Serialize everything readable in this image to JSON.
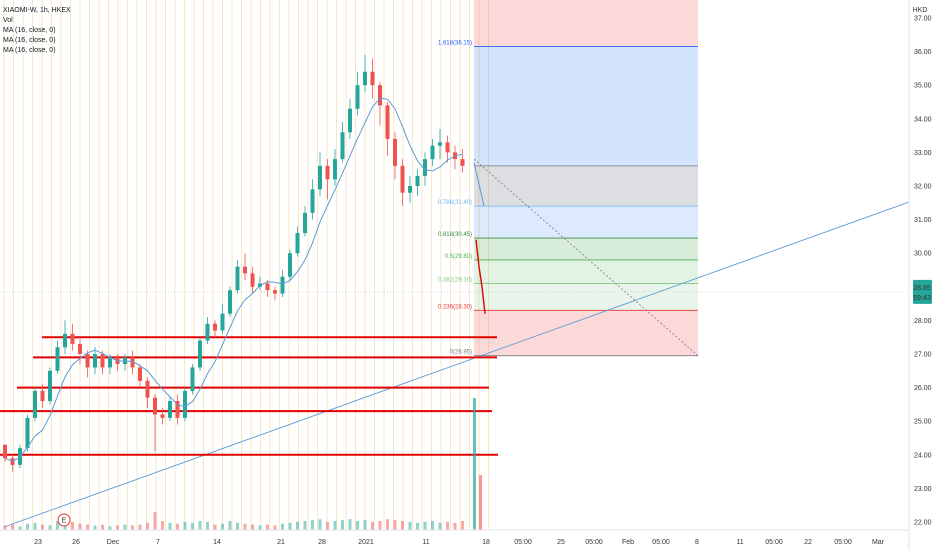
{
  "legend": {
    "symbol": "XIAOMI-W, 1h, HKEX",
    "vol": "Vol",
    "ma1": "MA (16, close, 0)",
    "ma2": "MA (16, close, 0)",
    "ma3": "MA (16, close, 0)"
  },
  "currency": "HKD",
  "price_badge": {
    "price": "28.85",
    "countdown": "59:43",
    "color": "#26a69a"
  },
  "event_badge": "E",
  "chart_data": {
    "type": "candlestick",
    "ylim": [
      22.0,
      37.0
    ],
    "y_ticks": [
      "22.00",
      "23.00",
      "24.00",
      "25.00",
      "26.00",
      "27.00",
      "28.00",
      "29.00",
      "30.00",
      "31.00",
      "32.00",
      "33.00",
      "34.00",
      "35.00",
      "36.00",
      "37.00"
    ],
    "x_ticks": [
      "23",
      "26",
      "Dec",
      "7",
      "14",
      "21",
      "28",
      "2021",
      "11",
      "18",
      "05:00",
      "25",
      "05:00",
      "Feb",
      "05:00",
      "8",
      "11",
      "05:00",
      "22",
      "05:00",
      "Mar"
    ],
    "candles": [
      [
        24.3,
        23.9,
        24.3,
        23.8
      ],
      [
        23.9,
        23.7,
        24.0,
        23.5
      ],
      [
        23.7,
        24.2,
        24.3,
        23.6
      ],
      [
        24.2,
        25.1,
        25.2,
        24.1
      ],
      [
        25.1,
        25.9,
        26.0,
        25.0
      ],
      [
        25.9,
        25.6,
        26.1,
        25.4
      ],
      [
        25.6,
        26.5,
        26.6,
        25.5
      ],
      [
        26.5,
        27.2,
        27.4,
        26.4
      ],
      [
        27.2,
        27.6,
        28.0,
        27.0
      ],
      [
        27.6,
        27.3,
        27.9,
        27.1
      ],
      [
        27.3,
        27.0,
        27.5,
        26.7
      ],
      [
        27.0,
        26.6,
        27.1,
        26.3
      ],
      [
        26.6,
        27.0,
        27.2,
        26.4
      ],
      [
        27.0,
        26.6,
        27.1,
        26.4
      ],
      [
        26.6,
        26.9,
        27.0,
        26.4
      ],
      [
        26.9,
        26.7,
        27.0,
        26.5
      ],
      [
        26.7,
        26.9,
        27.0,
        26.5
      ],
      [
        26.9,
        26.6,
        27.1,
        26.4
      ],
      [
        26.6,
        26.2,
        26.7,
        26.0
      ],
      [
        26.2,
        25.7,
        26.3,
        25.4
      ],
      [
        25.7,
        25.2,
        25.8,
        24.1
      ],
      [
        25.2,
        25.1,
        25.4,
        24.9
      ],
      [
        25.1,
        25.6,
        25.7,
        25.0
      ],
      [
        25.6,
        25.1,
        25.8,
        24.9
      ],
      [
        25.1,
        25.9,
        26.0,
        25.0
      ],
      [
        25.9,
        26.6,
        26.7,
        25.8
      ],
      [
        26.6,
        27.4,
        27.5,
        26.5
      ],
      [
        27.4,
        27.9,
        28.1,
        27.3
      ],
      [
        27.9,
        27.7,
        28.0,
        27.5
      ],
      [
        27.7,
        28.2,
        28.5,
        27.6
      ],
      [
        28.2,
        28.9,
        29.0,
        28.1
      ],
      [
        28.9,
        29.6,
        29.8,
        28.8
      ],
      [
        29.6,
        29.4,
        30.0,
        29.2
      ],
      [
        29.4,
        29.0,
        29.6,
        28.8
      ],
      [
        29.0,
        29.1,
        29.3,
        28.9
      ],
      [
        29.1,
        28.9,
        29.2,
        28.7
      ],
      [
        28.9,
        28.8,
        29.0,
        28.6
      ],
      [
        28.8,
        29.3,
        29.5,
        28.7
      ],
      [
        29.3,
        30.0,
        30.1,
        29.2
      ],
      [
        30.0,
        30.6,
        30.8,
        29.9
      ],
      [
        30.6,
        31.2,
        31.4,
        30.5
      ],
      [
        31.2,
        31.9,
        32.2,
        31.0
      ],
      [
        31.9,
        32.6,
        33.0,
        31.7
      ],
      [
        32.6,
        32.2,
        32.8,
        31.6
      ],
      [
        32.2,
        32.8,
        33.1,
        32.0
      ],
      [
        32.8,
        33.6,
        33.9,
        32.7
      ],
      [
        33.6,
        34.3,
        34.6,
        33.4
      ],
      [
        34.3,
        35.0,
        35.4,
        34.1
      ],
      [
        35.0,
        35.4,
        35.9,
        34.8
      ],
      [
        35.4,
        35.0,
        35.8,
        34.6
      ],
      [
        35.0,
        34.4,
        35.1,
        33.8
      ],
      [
        34.4,
        33.4,
        34.5,
        32.9
      ],
      [
        33.4,
        32.6,
        33.6,
        32.2
      ],
      [
        32.6,
        31.8,
        32.8,
        31.4
      ],
      [
        31.8,
        32.0,
        32.3,
        31.5
      ],
      [
        32.0,
        32.3,
        32.5,
        31.7
      ],
      [
        32.3,
        32.8,
        33.0,
        32.0
      ],
      [
        32.8,
        33.2,
        33.4,
        32.6
      ],
      [
        33.2,
        33.3,
        33.7,
        32.8
      ],
      [
        33.3,
        33.0,
        33.5,
        32.7
      ],
      [
        33.0,
        32.8,
        33.2,
        32.5
      ],
      [
        32.8,
        32.6,
        33.1,
        32.4
      ]
    ],
    "volumes": [
      0.25,
      0.3,
      0.2,
      0.35,
      0.4,
      0.3,
      0.25,
      0.5,
      0.7,
      0.45,
      0.35,
      0.3,
      0.25,
      0.3,
      0.2,
      0.25,
      0.3,
      0.25,
      0.3,
      0.4,
      1.0,
      0.5,
      0.4,
      0.35,
      0.45,
      0.4,
      0.5,
      0.45,
      0.3,
      0.35,
      0.5,
      0.4,
      0.35,
      0.3,
      0.25,
      0.3,
      0.25,
      0.35,
      0.4,
      0.45,
      0.5,
      0.55,
      0.6,
      0.45,
      0.5,
      0.55,
      0.6,
      0.5,
      0.55,
      0.45,
      0.5,
      0.6,
      0.55,
      0.5,
      0.45,
      0.4,
      0.45,
      0.5,
      0.4,
      0.45,
      0.4,
      0.5
    ],
    "big_volume": 6.0,
    "projection": [
      30.4,
      29.6,
      29.0,
      28.2
    ],
    "fib_levels": [
      {
        "label": "1.618(36.15)",
        "value": 36.15,
        "color": "#2962ff"
      },
      {
        "label": "0.786(31.40)",
        "value": 31.4,
        "color": "#64b5f6"
      },
      {
        "label": "0.618(30.45)",
        "value": 30.45,
        "color": "#388e3c"
      },
      {
        "label": "0.5(29.80)",
        "value": 29.8,
        "color": "#4caf50"
      },
      {
        "label": "0.382(29.10)",
        "value": 29.1,
        "color": "#81c784"
      },
      {
        "label": "0.236(28.30)",
        "value": 28.3,
        "color": "#e53935"
      },
      {
        "label": "0(26.95)",
        "value": 26.95,
        "color": "#787b86"
      }
    ],
    "support_lines": [
      27.5,
      26.9,
      26.0,
      25.3,
      24.0
    ],
    "colors": {
      "up": "#26a69a",
      "down": "#ef5350",
      "ma": "#5b9bd5",
      "support": "#e00000",
      "trend": "#5b9bd5"
    }
  }
}
